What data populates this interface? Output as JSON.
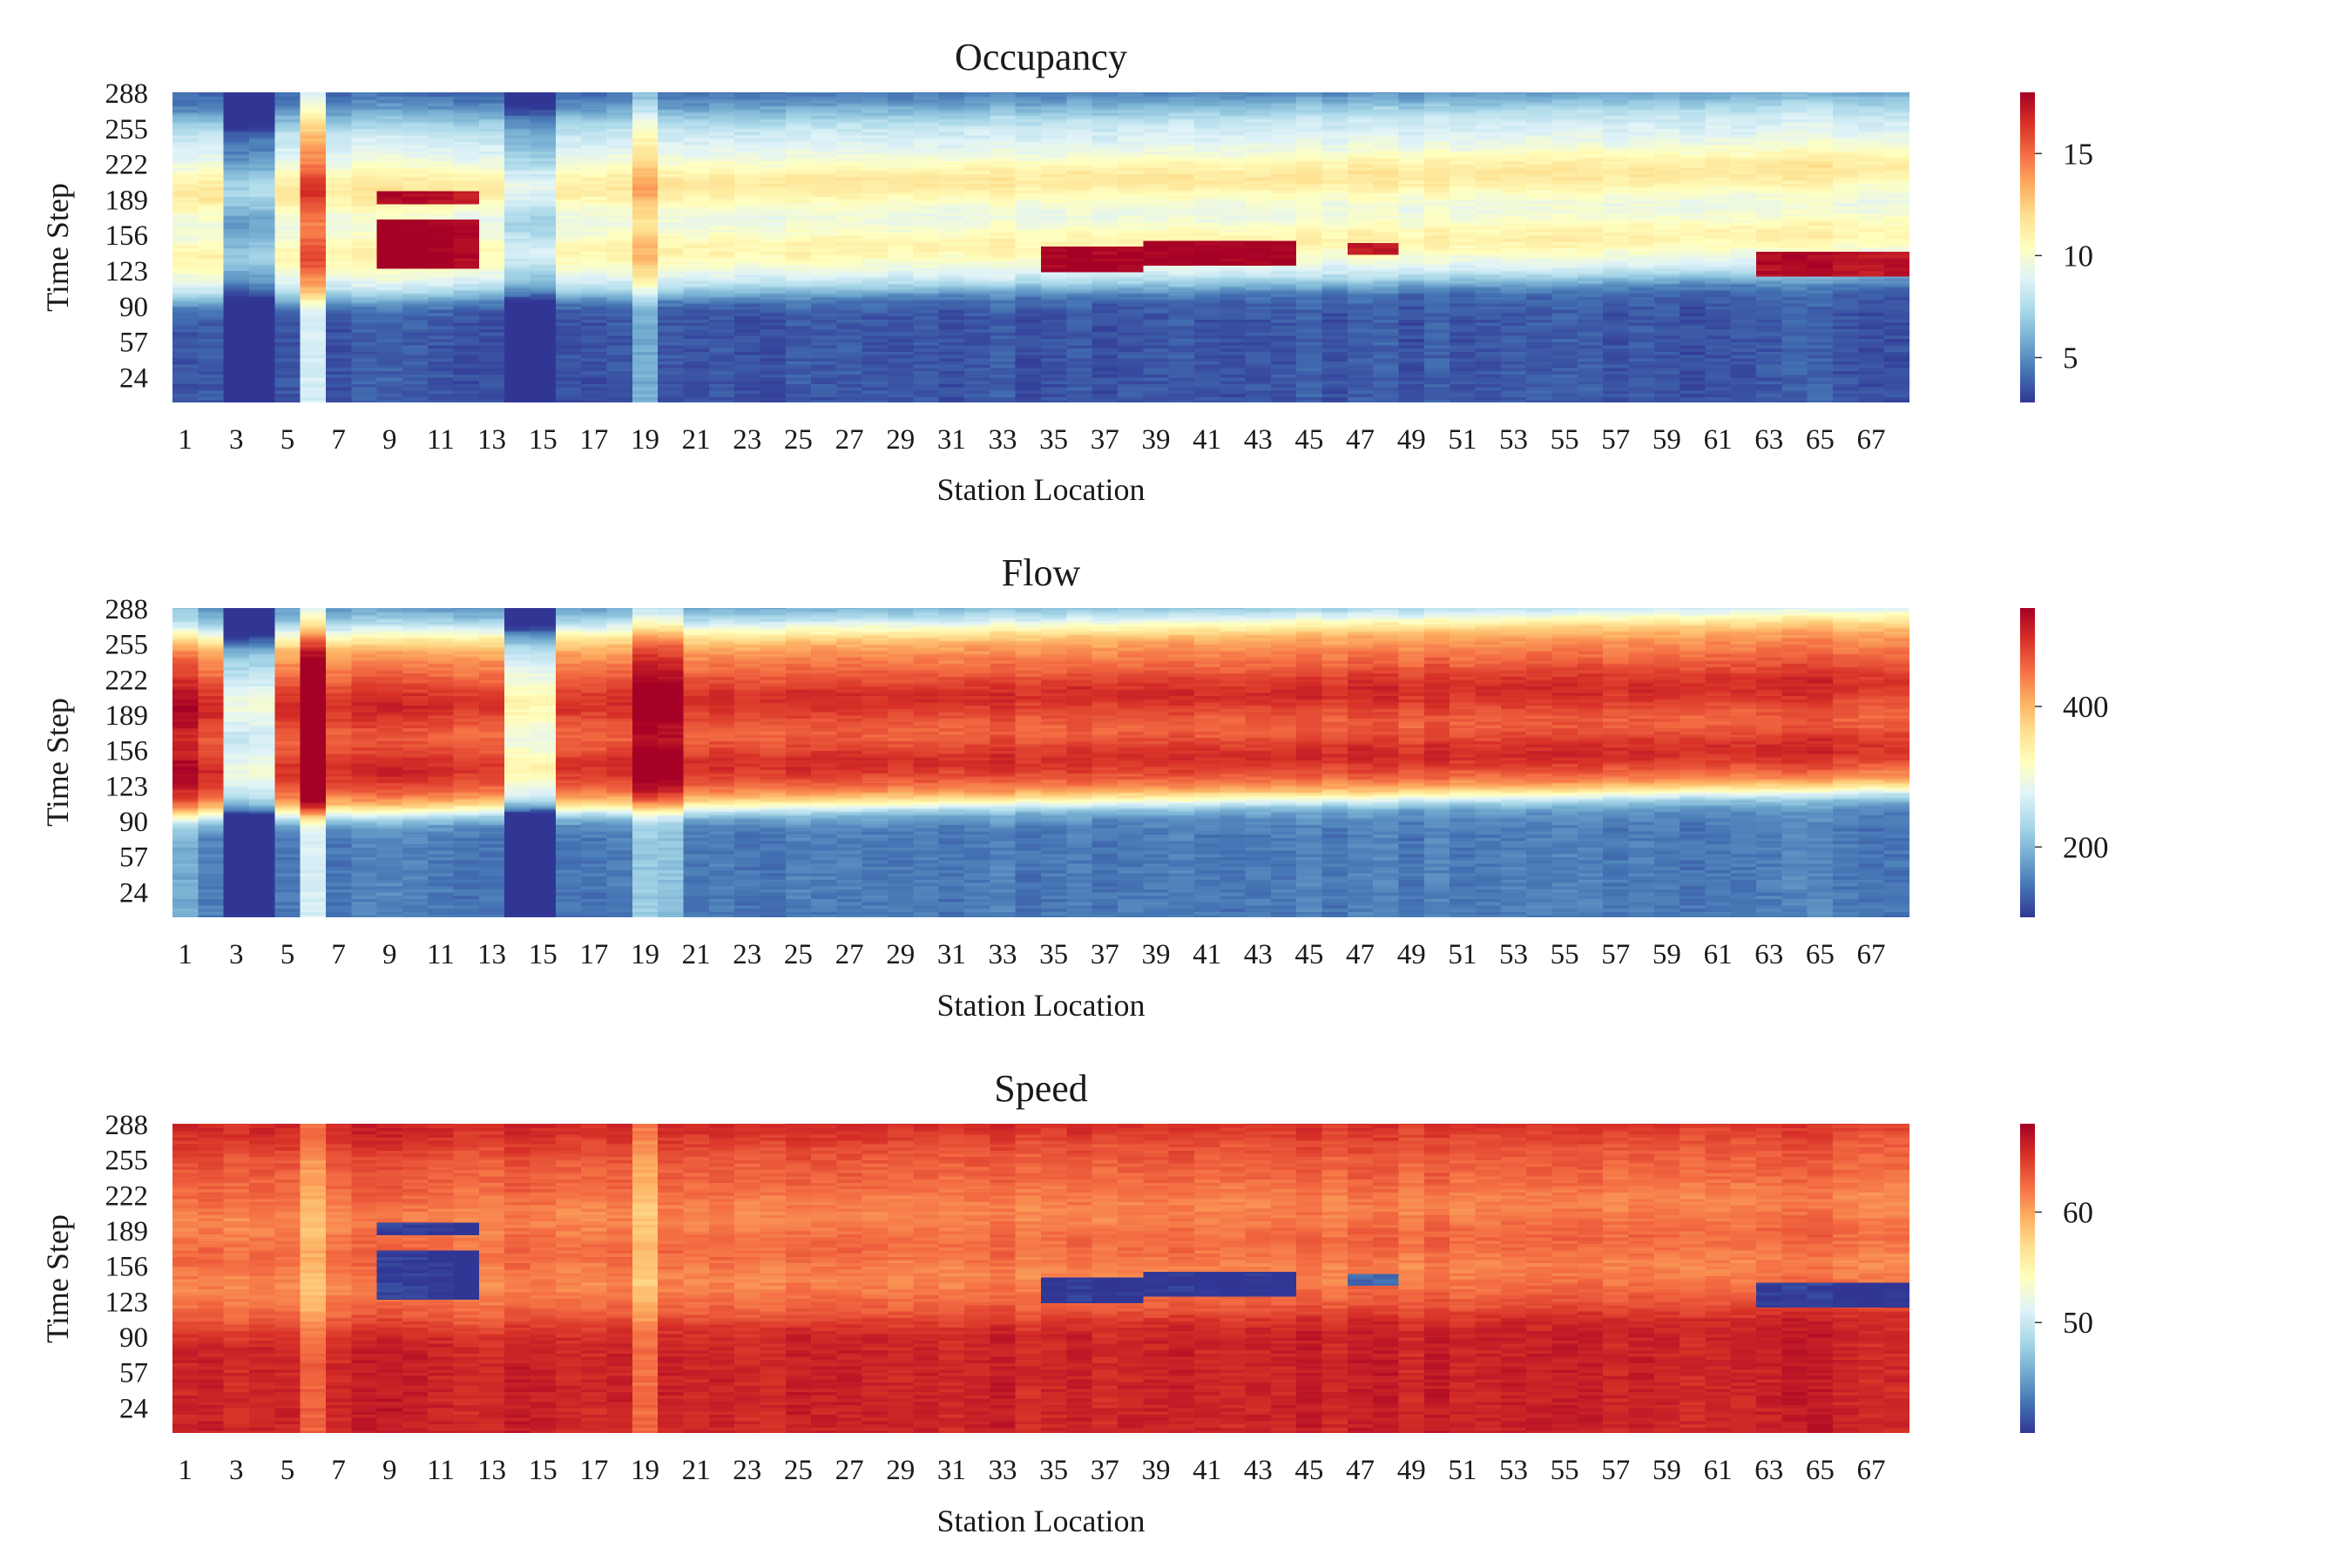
{
  "figure": {
    "panel_order": [
      "occupancy",
      "flow",
      "speed"
    ]
  },
  "colormap": {
    "name": "RdYlBu_r",
    "stops": [
      "#313695",
      "#4575b4",
      "#74add1",
      "#abd9e9",
      "#e0f3f8",
      "#ffffbf",
      "#fee090",
      "#fdae61",
      "#f46d43",
      "#d73027",
      "#a50026"
    ]
  },
  "chart_data": [
    {
      "id": "occupancy",
      "type": "heatmap",
      "title": "Occupancy",
      "xlabel": "Station Location",
      "ylabel": "Time Step",
      "x_tick_labels": [
        "1",
        "3",
        "5",
        "7",
        "9",
        "11",
        "13",
        "15",
        "17",
        "19",
        "21",
        "23",
        "25",
        "27",
        "29",
        "31",
        "33",
        "35",
        "37",
        "39",
        "41",
        "43",
        "45",
        "47",
        "49",
        "51",
        "53",
        "55",
        "57",
        "59",
        "61",
        "63",
        "65",
        "67"
      ],
      "y_tick_labels": [
        "288",
        "255",
        "222",
        "189",
        "156",
        "123",
        "90",
        "57",
        "24"
      ],
      "stations": 68,
      "time_steps": 288,
      "colorbar": {
        "min": 2.8,
        "max": 18,
        "ticks": [
          5,
          10,
          15
        ],
        "tick_labels": [
          "5",
          "10",
          "15"
        ]
      },
      "profile": {
        "night": 3.6,
        "day": 9.0,
        "morning_peak": 11.0,
        "evening_peak": 11.5
      },
      "patterns": [
        {
          "kind": "congestion",
          "stations": [
            9,
            12
          ],
          "time_steps": [
            125,
            170
          ],
          "value": 18.0
        },
        {
          "kind": "congestion",
          "stations": [
            9,
            12
          ],
          "time_steps": [
            185,
            196
          ],
          "value": 17.5
        },
        {
          "kind": "congestion",
          "stations": [
            35,
            38
          ],
          "time_steps": [
            122,
            145
          ],
          "value": 18.0
        },
        {
          "kind": "congestion",
          "stations": [
            39,
            44
          ],
          "time_steps": [
            128,
            150
          ],
          "value": 18.0
        },
        {
          "kind": "congestion",
          "stations": [
            47,
            48
          ],
          "time_steps": [
            138,
            148
          ],
          "value": 17.0
        },
        {
          "kind": "congestion",
          "stations": [
            63,
            68
          ],
          "time_steps": [
            118,
            140
          ],
          "value": 17.5
        },
        {
          "kind": "station_offset",
          "stations": [
            3,
            4
          ],
          "delta": -4.0
        },
        {
          "kind": "station_offset",
          "stations": [
            14,
            15
          ],
          "delta": -2.5
        },
        {
          "kind": "station_offset",
          "stations": [
            6,
            6
          ],
          "delta": 5.0
        },
        {
          "kind": "station_offset",
          "stations": [
            19,
            19
          ],
          "delta": 2.0
        }
      ]
    },
    {
      "id": "flow",
      "type": "heatmap",
      "title": "Flow",
      "xlabel": "Station Location",
      "ylabel": "Time Step",
      "x_tick_labels": [
        "1",
        "3",
        "5",
        "7",
        "9",
        "11",
        "13",
        "15",
        "17",
        "19",
        "21",
        "23",
        "25",
        "27",
        "29",
        "31",
        "33",
        "35",
        "37",
        "39",
        "41",
        "43",
        "45",
        "47",
        "49",
        "51",
        "53",
        "55",
        "57",
        "59",
        "61",
        "63",
        "65",
        "67"
      ],
      "y_tick_labels": [
        "288",
        "255",
        "222",
        "189",
        "156",
        "123",
        "90",
        "57",
        "24"
      ],
      "stations": 68,
      "time_steps": 288,
      "colorbar": {
        "min": 100,
        "max": 540,
        "ticks": [
          200,
          400
        ],
        "tick_labels": [
          "200",
          "400"
        ]
      },
      "profile": {
        "night": 150,
        "day": 450,
        "morning_peak": 500,
        "evening_peak": 500
      },
      "patterns": [
        {
          "kind": "station_offset",
          "stations": [
            3,
            4
          ],
          "delta": -200
        },
        {
          "kind": "station_offset",
          "stations": [
            14,
            15
          ],
          "delta": -170
        },
        {
          "kind": "station_offset",
          "stations": [
            6,
            6
          ],
          "delta": 120
        },
        {
          "kind": "station_offset",
          "stations": [
            19,
            20
          ],
          "delta": 60
        },
        {
          "kind": "station_offset",
          "stations": [
            1,
            1
          ],
          "delta": 40
        }
      ]
    },
    {
      "id": "speed",
      "type": "heatmap",
      "title": "Speed",
      "xlabel": "Station Location",
      "ylabel": "Time Step",
      "x_tick_labels": [
        "1",
        "3",
        "5",
        "7",
        "9",
        "11",
        "13",
        "15",
        "17",
        "19",
        "21",
        "23",
        "25",
        "27",
        "29",
        "31",
        "33",
        "35",
        "37",
        "39",
        "41",
        "43",
        "45",
        "47",
        "49",
        "51",
        "53",
        "55",
        "57",
        "59",
        "61",
        "63",
        "65",
        "67"
      ],
      "y_tick_labels": [
        "288",
        "255",
        "222",
        "189",
        "156",
        "123",
        "90",
        "57",
        "24"
      ],
      "stations": 68,
      "time_steps": 288,
      "colorbar": {
        "min": 40,
        "max": 68,
        "ticks": [
          50,
          60
        ],
        "tick_labels": [
          "50",
          "60"
        ]
      },
      "profile": {
        "night": 66,
        "day": 63,
        "morning_peak": 61.5,
        "evening_peak": 61.5
      },
      "patterns": [
        {
          "kind": "congestion",
          "stations": [
            9,
            12
          ],
          "time_steps": [
            125,
            170
          ],
          "value": 40.0
        },
        {
          "kind": "congestion",
          "stations": [
            9,
            12
          ],
          "time_steps": [
            185,
            196
          ],
          "value": 40.0
        },
        {
          "kind": "congestion",
          "stations": [
            35,
            38
          ],
          "time_steps": [
            122,
            145
          ],
          "value": 40.0
        },
        {
          "kind": "congestion",
          "stations": [
            39,
            44
          ],
          "time_steps": [
            128,
            150
          ],
          "value": 40.0
        },
        {
          "kind": "congestion",
          "stations": [
            47,
            48
          ],
          "time_steps": [
            138,
            148
          ],
          "value": 42.0
        },
        {
          "kind": "congestion",
          "stations": [
            63,
            68
          ],
          "time_steps": [
            118,
            140
          ],
          "value": 40.0
        },
        {
          "kind": "station_offset",
          "stations": [
            6,
            6
          ],
          "delta": -3.0
        },
        {
          "kind": "station_offset",
          "stations": [
            19,
            19
          ],
          "delta": -4.0
        }
      ]
    }
  ]
}
